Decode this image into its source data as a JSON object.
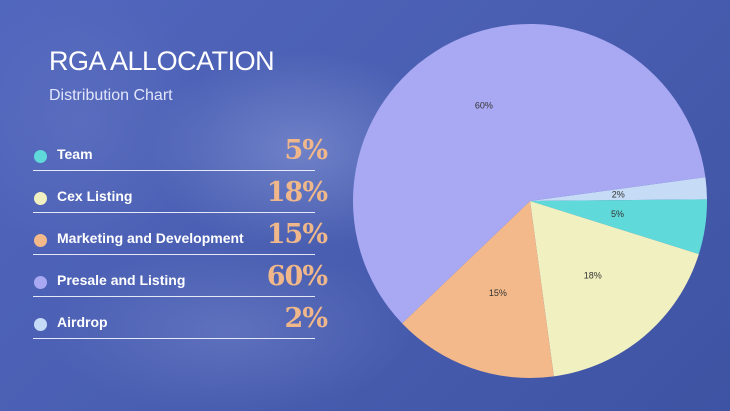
{
  "header": {
    "title": "RGA ALLOCATION",
    "subtitle": "Distribution Chart"
  },
  "legend": [
    {
      "label": "Team",
      "value_text": "5%",
      "color": "#5fd9d9"
    },
    {
      "label": "Cex Listing",
      "value_text": "18%",
      "color": "#f1f0c0"
    },
    {
      "label": "Marketing and Development",
      "value_text": "15%",
      "color": "#f3b98a"
    },
    {
      "label": "Presale and Listing",
      "value_text": "60%",
      "color": "#a9a8f2"
    },
    {
      "label": "Airdrop",
      "value_text": "2%",
      "color": "#c5dbf6"
    }
  ],
  "chart_data": {
    "type": "pie",
    "slices": [
      {
        "name": "Airdrop",
        "value": 2,
        "label": "2%",
        "color": "#c5dbf6"
      },
      {
        "name": "Team",
        "value": 5,
        "label": "5%",
        "color": "#5fd9d9"
      },
      {
        "name": "Cex Listing",
        "value": 18,
        "label": "18%",
        "color": "#f1f0c0"
      },
      {
        "name": "Marketing and Development",
        "value": 15,
        "label": "15%",
        "color": "#f3b98a"
      },
      {
        "name": "Presale and Listing",
        "value": 60,
        "label": "60%",
        "color": "#a9a8f2"
      }
    ]
  }
}
